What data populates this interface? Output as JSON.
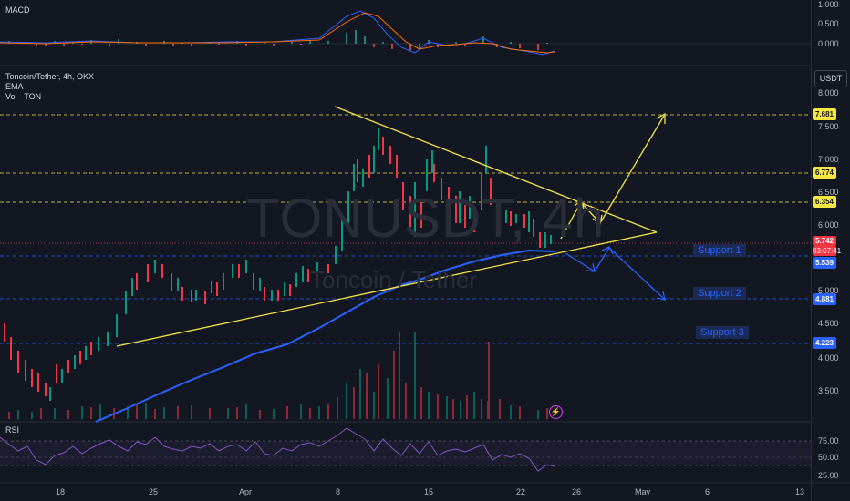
{
  "header": {
    "macd_label": "MACD",
    "symbol_line": "Toncoin/Tether, 4h, OKX",
    "indicators": [
      "EMA",
      "Vol · TON"
    ],
    "rsi_label": "RSI",
    "currency_button": "USDT"
  },
  "watermark": {
    "ticker": "TONUSDT, 4h",
    "name": "Toncoin / Tether"
  },
  "macd_axis": [
    "1.000",
    "0.500",
    "0.000"
  ],
  "price_axis": [
    "8.000",
    "7.500",
    "7.000",
    "6.500",
    "6.000",
    "5.000",
    "4.500",
    "4.000",
    "3.500"
  ],
  "rsi_axis": [
    "75.00",
    "50.00",
    "25.00"
  ],
  "x_axis": [
    "18",
    "25",
    "Apr",
    "8",
    "15",
    "22",
    "26",
    "May",
    "6",
    "13"
  ],
  "levels": [
    {
      "value": "7.681",
      "color": "#f5e642",
      "text_color": "#131722"
    },
    {
      "value": "6.774",
      "color": "#f5e642",
      "text_color": "#131722"
    },
    {
      "value": "6.354",
      "color": "#f5e642",
      "text_color": "#131722"
    },
    {
      "value": "5.742",
      "color": "#f23645",
      "text_color": "#ffffff",
      "extra": "03:07:41"
    },
    {
      "value": "5.539",
      "color": "#2962ff",
      "text_color": "#ffffff"
    },
    {
      "value": "4.881",
      "color": "#2962ff",
      "text_color": "#ffffff"
    },
    {
      "value": "4.223",
      "color": "#2962ff",
      "text_color": "#ffffff"
    }
  ],
  "supports": [
    "Support 1",
    "Support 2",
    "Support 3"
  ],
  "colors": {
    "bg": "#131722",
    "up": "#089981",
    "down": "#f23645",
    "ema": "#2962ff",
    "drawing": "#f5e642",
    "grid": "#2a2e39"
  },
  "icons": [
    "lightning-icon"
  ]
}
